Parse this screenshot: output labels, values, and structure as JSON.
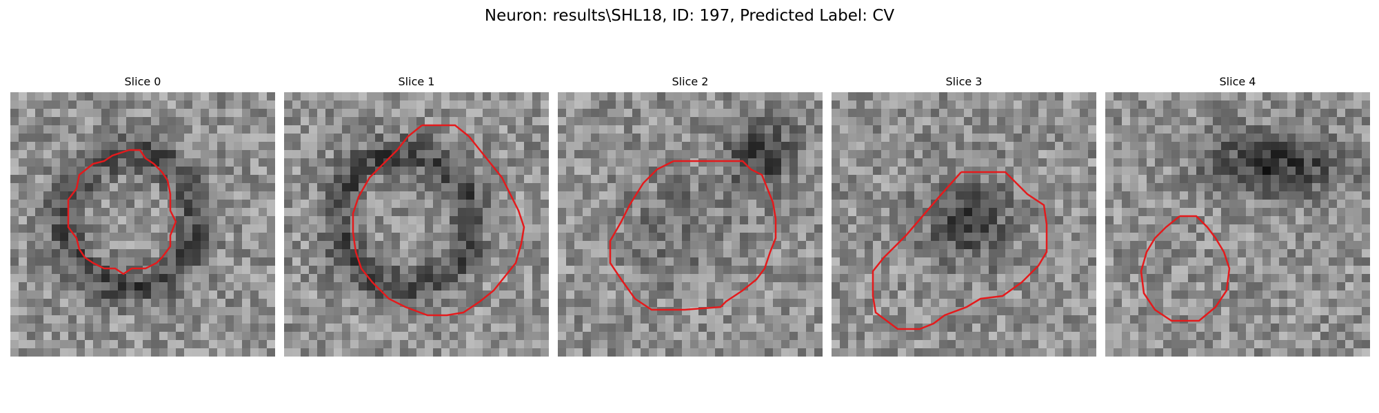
{
  "figure": {
    "title": "Neuron: results\\SHL18, ID: 197, Predicted Label: CV"
  },
  "outline_color": "#e41a1c",
  "panels": [
    {
      "title": "Slice 0",
      "dark_blob": "ring",
      "roi": "rounded-oval"
    },
    {
      "title": "Slice 1",
      "dark_blob": "ring",
      "roi": "large-octagon"
    },
    {
      "title": "Slice 2",
      "dark_blob": "upper-right",
      "roi": "rounded-octagon"
    },
    {
      "title": "Slice 3",
      "dark_blob": "center",
      "roi": "tilted-polygon"
    },
    {
      "title": "Slice 4",
      "dark_blob": "top-right",
      "roi": "small-octagon"
    }
  ]
}
